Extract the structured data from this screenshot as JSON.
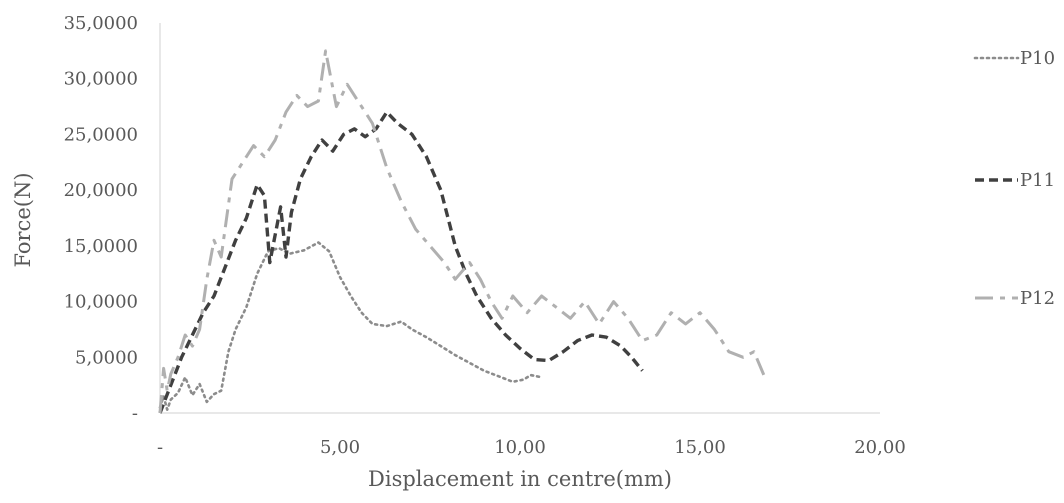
{
  "chart_data": {
    "type": "line",
    "title": "",
    "xlabel": "Displacement in centre(mm)",
    "ylabel": "Force(N)",
    "xlim": [
      0,
      20
    ],
    "ylim": [
      0,
      35
    ],
    "grid": false,
    "legend_position": "right",
    "x_ticks": [
      {
        "value": 0,
        "label": "-"
      },
      {
        "value": 5,
        "label": "5,00"
      },
      {
        "value": 10,
        "label": "10,00"
      },
      {
        "value": 15,
        "label": "15,00"
      },
      {
        "value": 20,
        "label": "20,00"
      }
    ],
    "y_ticks": [
      {
        "value": 0,
        "label": "-"
      },
      {
        "value": 5,
        "label": "5,0000"
      },
      {
        "value": 10,
        "label": "10,0000"
      },
      {
        "value": 15,
        "label": "15,0000"
      },
      {
        "value": 20,
        "label": "20,0000"
      },
      {
        "value": 25,
        "label": "25,0000"
      },
      {
        "value": 30,
        "label": "30,0000"
      },
      {
        "value": 35,
        "label": "35,0000"
      }
    ],
    "series": [
      {
        "name": "P10",
        "color": "#8c8c8c",
        "dash": "dotted",
        "points": [
          [
            0,
            0.5
          ],
          [
            0.1,
            1.5
          ],
          [
            0.2,
            0.3
          ],
          [
            0.3,
            1.2
          ],
          [
            0.5,
            1.8
          ],
          [
            0.7,
            3.2
          ],
          [
            0.9,
            1.6
          ],
          [
            1.1,
            2.6
          ],
          [
            1.3,
            1.0
          ],
          [
            1.5,
            1.7
          ],
          [
            1.7,
            2.0
          ],
          [
            1.9,
            5.5
          ],
          [
            2.1,
            7.5
          ],
          [
            2.4,
            9.5
          ],
          [
            2.7,
            12.5
          ],
          [
            3.0,
            14.5
          ],
          [
            3.3,
            14.8
          ],
          [
            3.6,
            14.3
          ],
          [
            4.0,
            14.6
          ],
          [
            4.4,
            15.3
          ],
          [
            4.7,
            14.5
          ],
          [
            5.0,
            12.2
          ],
          [
            5.3,
            10.5
          ],
          [
            5.6,
            9.0
          ],
          [
            5.9,
            8.0
          ],
          [
            6.3,
            7.8
          ],
          [
            6.7,
            8.2
          ],
          [
            7.0,
            7.5
          ],
          [
            7.4,
            6.8
          ],
          [
            7.8,
            6.0
          ],
          [
            8.2,
            5.2
          ],
          [
            8.6,
            4.5
          ],
          [
            9.0,
            3.8
          ],
          [
            9.4,
            3.3
          ],
          [
            9.8,
            2.8
          ],
          [
            10.1,
            3.0
          ],
          [
            10.3,
            3.4
          ],
          [
            10.6,
            3.2
          ]
        ]
      },
      {
        "name": "P11",
        "color": "#404040",
        "dash": "dashed",
        "points": [
          [
            0,
            0
          ],
          [
            0.3,
            2.5
          ],
          [
            0.6,
            5.0
          ],
          [
            0.9,
            7.0
          ],
          [
            1.2,
            9.0
          ],
          [
            1.5,
            10.5
          ],
          [
            1.8,
            13.0
          ],
          [
            2.1,
            15.5
          ],
          [
            2.4,
            17.5
          ],
          [
            2.7,
            20.5
          ],
          [
            2.9,
            19.5
          ],
          [
            3.05,
            13.5
          ],
          [
            3.2,
            16.0
          ],
          [
            3.35,
            18.5
          ],
          [
            3.5,
            14.0
          ],
          [
            3.65,
            18.0
          ],
          [
            3.9,
            21.0
          ],
          [
            4.2,
            23.0
          ],
          [
            4.5,
            24.5
          ],
          [
            4.8,
            23.5
          ],
          [
            5.1,
            25.0
          ],
          [
            5.4,
            25.5
          ],
          [
            5.7,
            24.8
          ],
          [
            6.0,
            25.5
          ],
          [
            6.3,
            27.0
          ],
          [
            6.6,
            26.0
          ],
          [
            7.0,
            25.0
          ],
          [
            7.4,
            23.0
          ],
          [
            7.8,
            20.0
          ],
          [
            8.2,
            15.0
          ],
          [
            8.5,
            12.5
          ],
          [
            8.8,
            10.5
          ],
          [
            9.2,
            8.5
          ],
          [
            9.6,
            7.0
          ],
          [
            10.0,
            5.8
          ],
          [
            10.4,
            4.8
          ],
          [
            10.8,
            4.7
          ],
          [
            11.2,
            5.5
          ],
          [
            11.6,
            6.5
          ],
          [
            12.0,
            7.0
          ],
          [
            12.4,
            6.8
          ],
          [
            12.8,
            6.0
          ],
          [
            13.1,
            5.0
          ],
          [
            13.4,
            3.8
          ]
        ]
      },
      {
        "name": "P12",
        "color": "#b0b0b0",
        "dash": "dashdot",
        "points": [
          [
            0,
            0
          ],
          [
            0.1,
            4.0
          ],
          [
            0.2,
            2.0
          ],
          [
            0.3,
            3.5
          ],
          [
            0.5,
            5.0
          ],
          [
            0.7,
            7.0
          ],
          [
            0.9,
            6.0
          ],
          [
            1.1,
            7.5
          ],
          [
            1.3,
            12.0
          ],
          [
            1.5,
            15.5
          ],
          [
            1.7,
            14.0
          ],
          [
            2.0,
            21.0
          ],
          [
            2.3,
            22.5
          ],
          [
            2.6,
            24.0
          ],
          [
            2.9,
            23.0
          ],
          [
            3.2,
            24.5
          ],
          [
            3.5,
            27.0
          ],
          [
            3.8,
            28.5
          ],
          [
            4.1,
            27.5
          ],
          [
            4.4,
            28.0
          ],
          [
            4.6,
            32.5
          ],
          [
            4.9,
            27.5
          ],
          [
            5.2,
            29.5
          ],
          [
            5.5,
            28.0
          ],
          [
            5.9,
            26.0
          ],
          [
            6.3,
            22.0
          ],
          [
            6.7,
            19.0
          ],
          [
            7.1,
            16.5
          ],
          [
            7.5,
            15.0
          ],
          [
            7.9,
            13.5
          ],
          [
            8.2,
            12.0
          ],
          [
            8.6,
            13.5
          ],
          [
            8.9,
            12.0
          ],
          [
            9.2,
            10.0
          ],
          [
            9.5,
            8.5
          ],
          [
            9.8,
            10.5
          ],
          [
            10.2,
            9.0
          ],
          [
            10.6,
            10.5
          ],
          [
            11.0,
            9.5
          ],
          [
            11.4,
            8.5
          ],
          [
            11.8,
            10.0
          ],
          [
            12.2,
            8.0
          ],
          [
            12.6,
            10.0
          ],
          [
            13.0,
            8.5
          ],
          [
            13.4,
            6.5
          ],
          [
            13.8,
            7.0
          ],
          [
            14.2,
            9.0
          ],
          [
            14.6,
            8.0
          ],
          [
            15.0,
            9.0
          ],
          [
            15.4,
            7.5
          ],
          [
            15.8,
            5.5
          ],
          [
            16.2,
            5.0
          ],
          [
            16.5,
            5.5
          ],
          [
            16.8,
            3.2
          ]
        ]
      }
    ]
  }
}
